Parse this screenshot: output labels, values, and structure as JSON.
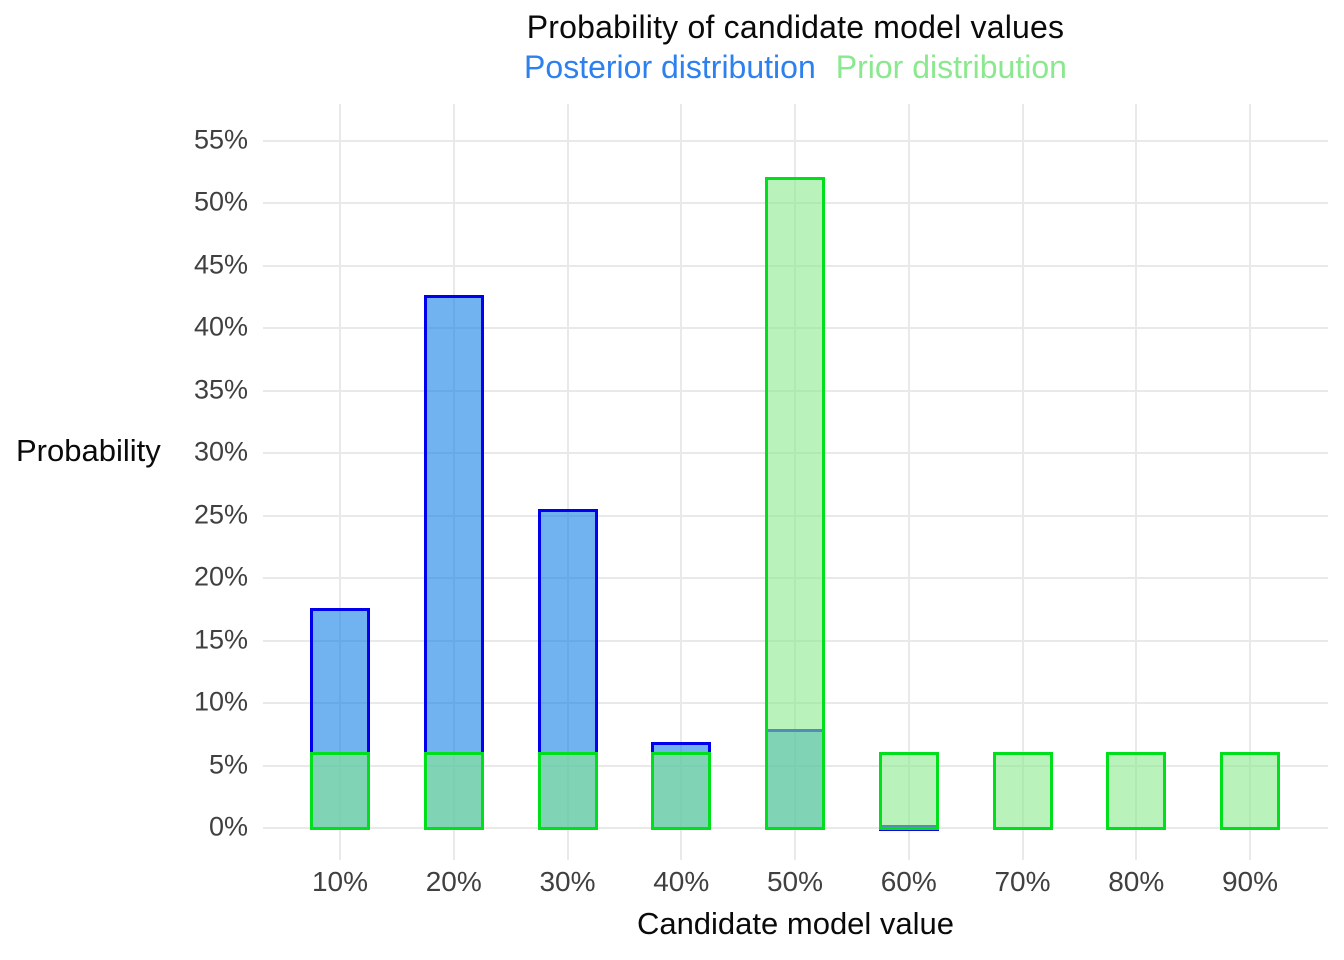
{
  "chart_data": {
    "type": "bar",
    "title": "Probability of candidate model values",
    "subtitle_legend": {
      "posterior": {
        "label": "Posterior distribution",
        "color": "#2d80ef"
      },
      "prior": {
        "label": "Prior distribution",
        "color": "#8ae98e"
      }
    },
    "xlabel": "Candidate model value",
    "ylabel": "Probability",
    "categories": [
      "10%",
      "20%",
      "30%",
      "40%",
      "50%",
      "60%",
      "70%",
      "80%",
      "90%"
    ],
    "series": [
      {
        "name": "Posterior distribution",
        "role": "posterior",
        "values": [
          17.5,
          42.5,
          25.4,
          6.8,
          7.8,
          0.1,
          0,
          0,
          0
        ],
        "fill_rgba": "rgba(18,128,232,0.6)",
        "stroke": "#0000ee"
      },
      {
        "name": "Prior distribution",
        "role": "prior",
        "values": [
          6,
          6,
          6,
          6,
          52,
          6,
          6,
          6,
          6
        ],
        "fill_rgba": "rgba(138,233,142,0.6)",
        "stroke": "#00df1b"
      }
    ],
    "y_ticks": [
      "0%",
      "5%",
      "10%",
      "15%",
      "20%",
      "25%",
      "30%",
      "35%",
      "40%",
      "45%",
      "50%",
      "55%"
    ],
    "ylim": [
      0,
      55
    ],
    "ytick_step": 5,
    "grid": true,
    "legend_position": "subtitle",
    "bar_layout": "overlaid",
    "background": "#ffffff",
    "gridline_color": "#e9e9e9",
    "tick_label_color": "#404040",
    "axis_title_color": "#0a0a0a"
  }
}
